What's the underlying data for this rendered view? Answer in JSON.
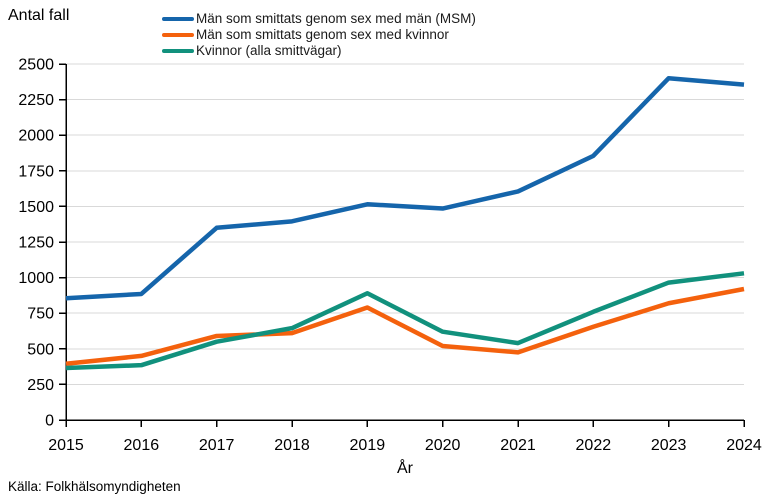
{
  "chart_data": {
    "type": "line",
    "title": "",
    "ylabel": "Antal fall",
    "xlabel": "År",
    "source": "Källa: Folkhälsomyndigheten",
    "x": [
      2015,
      2016,
      2017,
      2018,
      2019,
      2020,
      2021,
      2022,
      2023,
      2024
    ],
    "ylim": [
      0,
      2500
    ],
    "ytick_step": 250,
    "grid": "horizontal",
    "legend_position": "top-left",
    "series": [
      {
        "name": "Män som smittats genom sex med män (MSM)",
        "color": "#1565ab",
        "values": [
          855,
          885,
          1350,
          1395,
          1515,
          1485,
          1605,
          1855,
          2400,
          2355
        ]
      },
      {
        "name": "Män som smittats genom sex med kvinnor",
        "color": "#f4610d",
        "values": [
          395,
          450,
          590,
          610,
          790,
          520,
          475,
          655,
          820,
          920
        ]
      },
      {
        "name": "Kvinnor (alla smittvägar)",
        "color": "#11917d",
        "values": [
          365,
          385,
          550,
          645,
          890,
          620,
          540,
          760,
          965,
          1030
        ]
      }
    ]
  },
  "colors": {
    "grid": "#d9d9d9",
    "axis": "#000000",
    "text": "#000000",
    "background": "#ffffff"
  }
}
